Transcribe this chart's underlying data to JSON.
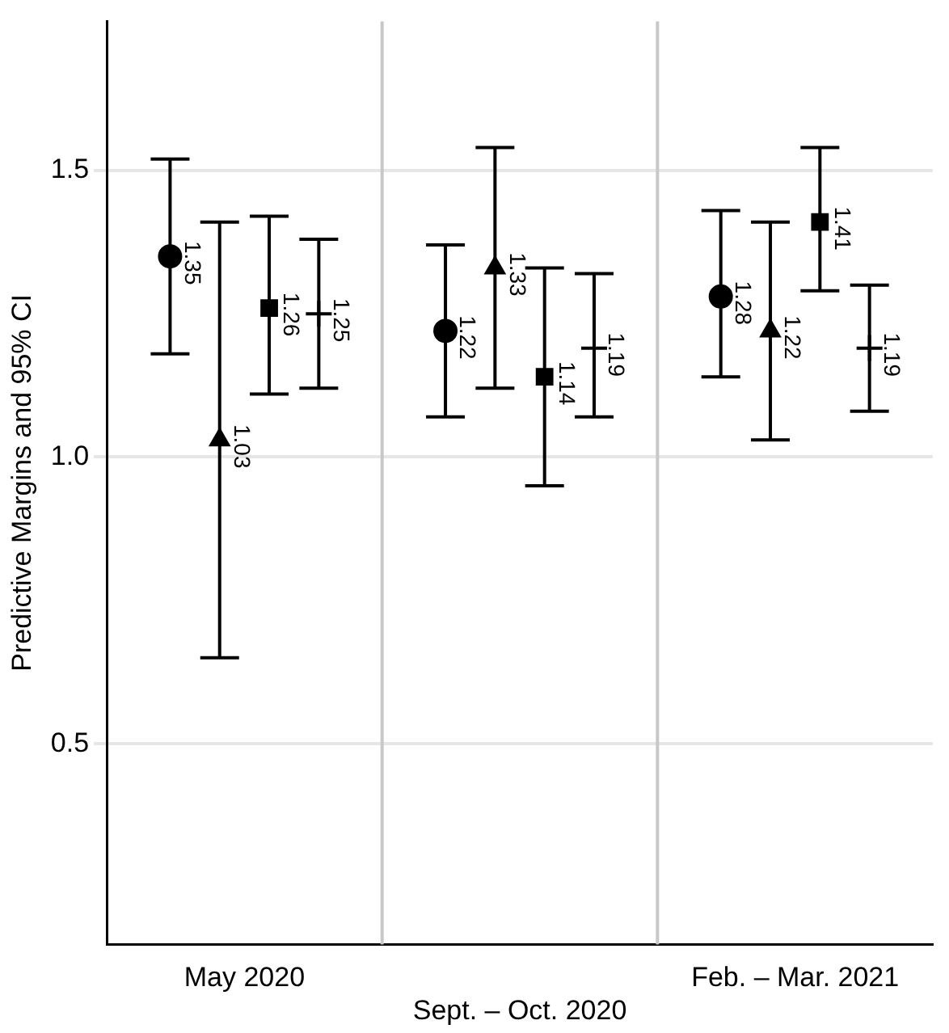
{
  "chart_data": {
    "type": "scatter",
    "ylabel": "Predictive Margins and 95% CI",
    "categories": [
      "May 2020",
      "Sept. – Oct. 2020",
      "Feb. – Mar. 2021"
    ],
    "ylim": [
      0.15,
      1.76
    ],
    "yticks": [
      0.5,
      {
        "value": 1,
        "label": "1.0"
      },
      1.5
    ],
    "grid": true,
    "legend": false,
    "data_labels": true,
    "series": [
      {
        "color": "#000000",
        "marker": "circle",
        "values": [
          1.35,
          1.22,
          1.28
        ],
        "errors": [
          [
            1.18,
            1.52
          ],
          [
            1.07,
            1.37
          ],
          [
            1.14,
            1.43
          ]
        ]
      },
      {
        "color": "#000000",
        "marker": "triangle",
        "values": [
          1.03,
          1.33,
          1.22
        ],
        "errors": [
          [
            0.65,
            1.41
          ],
          [
            1.12,
            1.54
          ],
          [
            1.03,
            1.41
          ]
        ]
      },
      {
        "color": "#000000",
        "marker": "square",
        "values": [
          1.26,
          1.14,
          1.41
        ],
        "errors": [
          [
            1.11,
            1.42
          ],
          [
            0.95,
            1.33
          ],
          [
            1.29,
            1.54
          ]
        ]
      },
      {
        "color": "#000000",
        "marker": "cross",
        "values": [
          1.25,
          1.19,
          1.19
        ],
        "errors": [
          [
            1.12,
            1.38
          ],
          [
            1.07,
            1.32
          ],
          [
            1.08,
            1.3
          ]
        ]
      }
    ]
  }
}
